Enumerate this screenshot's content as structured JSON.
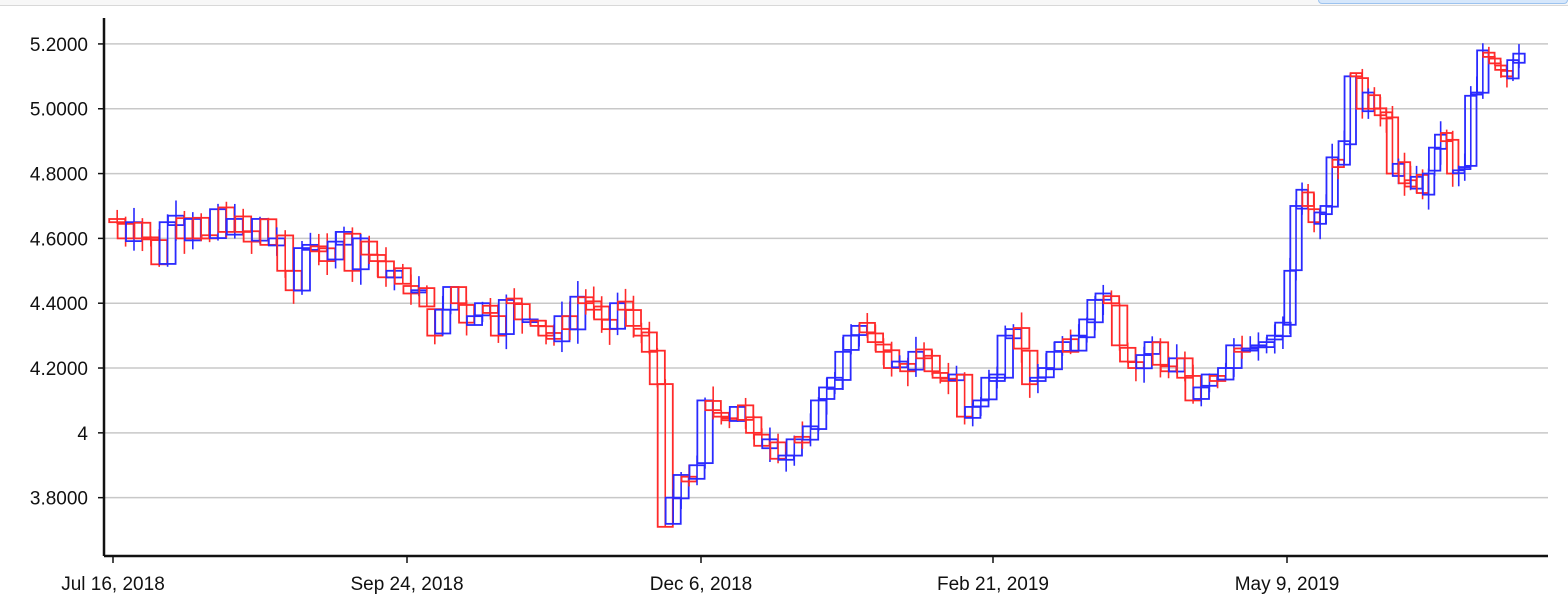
{
  "chart_data": {
    "type": "candlestick",
    "title": "",
    "xlabel": "",
    "ylabel": "",
    "ylim": [
      3.62,
      5.28
    ],
    "grid": true,
    "y_ticks": [
      {
        "value": 3.8,
        "label": "3.8000"
      },
      {
        "value": 4.0,
        "label": "4"
      },
      {
        "value": 4.2,
        "label": "4.2000"
      },
      {
        "value": 4.4,
        "label": "4.4000"
      },
      {
        "value": 4.6,
        "label": "4.6000"
      },
      {
        "value": 4.8,
        "label": "4.8000"
      },
      {
        "value": 5.0,
        "label": "5.0000"
      },
      {
        "value": 5.2,
        "label": "5.2000"
      }
    ],
    "x_ticks": [
      "Jul 16, 2018",
      "Sep 24, 2018",
      "Dec 6, 2018",
      "Feb 21, 2019",
      "May 9, 2019"
    ],
    "colors": {
      "up": "#2a2aff",
      "down": "#ff2a2a",
      "grid": "#c8c8c8",
      "axis": "#111111"
    },
    "segments": [
      {
        "label": "Jul 16, 2018",
        "closes": [
          4.65,
          4.6,
          4.65,
          4.6,
          4.6,
          4.52,
          4.65,
          4.67,
          4.6,
          4.66,
          4.6,
          4.6,
          4.69,
          4.62,
          4.66,
          4.62,
          4.59,
          4.66,
          4.58,
          4.6,
          4.5,
          4.44,
          4.57,
          4.58,
          4.56,
          4.53,
          4.59,
          4.62,
          4.5,
          4.6,
          4.55,
          4.53,
          4.48,
          4.5,
          4.46
        ]
      },
      {
        "label": "Sep 24, 2018",
        "closes": [
          4.43,
          4.44,
          4.39,
          4.3,
          4.38,
          4.45,
          4.4,
          4.34,
          4.36,
          4.4,
          4.37,
          4.3,
          4.41,
          4.4,
          4.35,
          4.35,
          4.33,
          4.3,
          4.29,
          4.36,
          4.32,
          4.42,
          4.4,
          4.38,
          4.35,
          4.32,
          4.4,
          4.38,
          4.33,
          4.3,
          4.25,
          4.15,
          3.71,
          3.8,
          3.87,
          3.85,
          3.9
        ]
      },
      {
        "label": "Dec 6, 2018",
        "closes": [
          4.1,
          4.07,
          4.05,
          4.04,
          4.08,
          4.04,
          4.0,
          3.96,
          3.98,
          3.92,
          3.93,
          3.98,
          3.97,
          4.02,
          4.1,
          4.14,
          4.17,
          4.25,
          4.3,
          4.33,
          4.31,
          4.28,
          4.25,
          4.2,
          4.22,
          4.19,
          4.25,
          4.23,
          4.19,
          4.17,
          4.16,
          4.18,
          4.05,
          4.08,
          4.1,
          4.17
        ]
      },
      {
        "label": "Feb 21, 2019",
        "closes": [
          4.18,
          4.3,
          4.32,
          4.26,
          4.15,
          4.17,
          4.2,
          4.25,
          4.28,
          4.25,
          4.3,
          4.35,
          4.41,
          4.43,
          4.4,
          4.27,
          4.22,
          4.2,
          4.24,
          4.28,
          4.21,
          4.19,
          4.23,
          4.17,
          4.1,
          4.14,
          4.18,
          4.16,
          4.2,
          4.27,
          4.25,
          4.26,
          4.27,
          4.28,
          4.3,
          4.34
        ]
      },
      {
        "label": "May 9, 2019",
        "closes": [
          4.5,
          4.7,
          4.75,
          4.7,
          4.65,
          4.68,
          4.7,
          4.85,
          4.82,
          4.9,
          5.1,
          5.1,
          5.0,
          5.05,
          5.0,
          4.98,
          4.97,
          4.8,
          4.83,
          4.77,
          4.76,
          4.79,
          4.74,
          4.8,
          4.88,
          4.92,
          4.9,
          4.8,
          4.81,
          4.82,
          5.04,
          5.05,
          5.18,
          5.16,
          5.14,
          5.12,
          5.1,
          5.15,
          5.17
        ]
      }
    ]
  }
}
